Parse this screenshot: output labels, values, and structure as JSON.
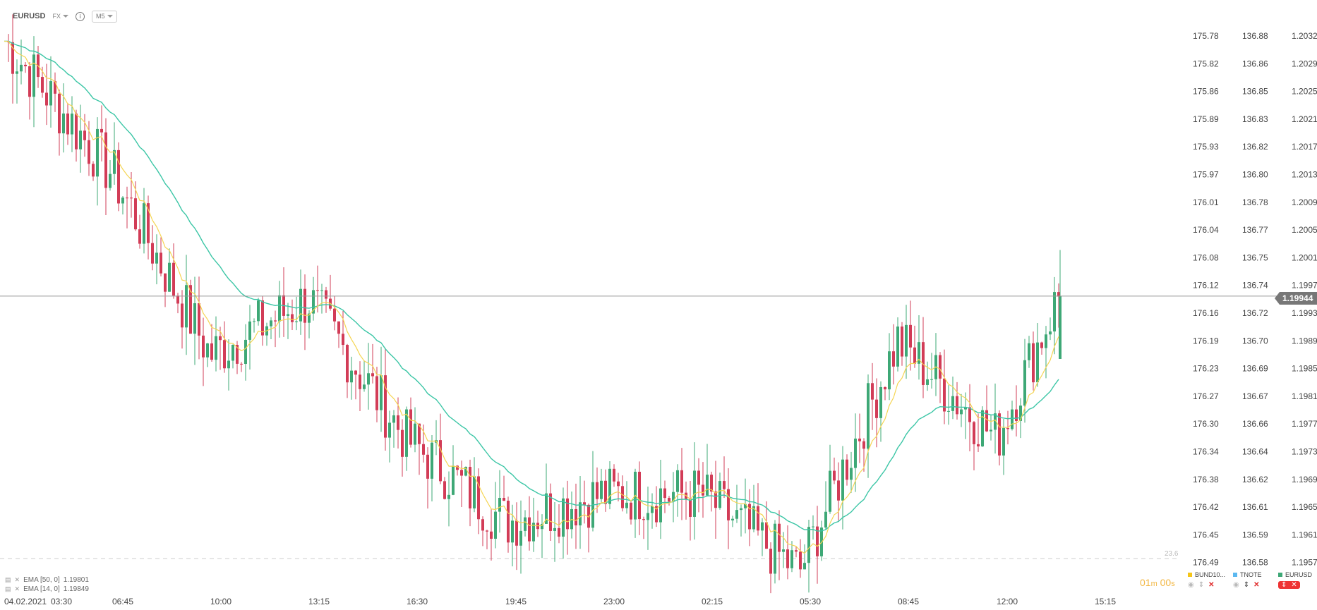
{
  "header": {
    "symbol": "EURUSD",
    "market": "FX",
    "info_glyph": "i",
    "timeframe": "M5"
  },
  "colors": {
    "bull": "#3ea876",
    "bear": "#d23c57",
    "ema50": "#3cc6a6",
    "ema14": "#f5d553",
    "price_line": "#999999",
    "price_label_bg": "#777777",
    "timer": "#f2b744"
  },
  "axes": {
    "col1": [
      "175.78",
      "175.82",
      "175.86",
      "175.89",
      "175.93",
      "175.97",
      "176.01",
      "176.04",
      "176.08",
      "176.12",
      "176.16",
      "176.19",
      "176.23",
      "176.27",
      "176.30",
      "176.34",
      "176.38",
      "176.42",
      "176.45",
      "176.49"
    ],
    "col2": [
      "136.88",
      "136.86",
      "136.85",
      "136.83",
      "136.82",
      "136.80",
      "136.78",
      "136.77",
      "136.75",
      "136.74",
      "136.72",
      "136.70",
      "136.69",
      "136.67",
      "136.66",
      "136.64",
      "136.62",
      "136.61",
      "136.59",
      "136.58"
    ],
    "col3": [
      "1.20329",
      "1.20290",
      "1.20250",
      "1.20211",
      "1.20171",
      "1.20132",
      "1.20092",
      "1.20053",
      "1.20013",
      "1.19974",
      "1.19935",
      "1.19895",
      "1.19856",
      "1.19816",
      "1.19777",
      "1.19737",
      "1.19698",
      "1.19658",
      "1.19619",
      "1.19579"
    ],
    "time_start": "04.02.2021",
    "time_labels": [
      "03:30",
      "06:45",
      "10:00",
      "13:15",
      "16:30",
      "19:45",
      "23:00",
      "02:15",
      "05:30",
      "08:45",
      "12:00",
      "15:15"
    ],
    "fib_label": "23.6"
  },
  "current_price": "1.19944",
  "indicators": [
    {
      "label": "EMA [50, 0]",
      "value": "1.19801"
    },
    {
      "label": "EMA [14, 0]",
      "value": "1.19849"
    }
  ],
  "timer": {
    "min": "01",
    "m": "m",
    "sec": "00",
    "s": "s"
  },
  "instruments": [
    {
      "name": "BUND10...",
      "color": "#f5c518"
    },
    {
      "name": "TNOTE",
      "color": "#5bb8f0"
    },
    {
      "name": "EURUSD",
      "color": "#3ea876"
    }
  ],
  "chart_data": {
    "type": "candlestick",
    "title": "EURUSD",
    "timeframe": "M5",
    "ylim": [
      1.1956,
      1.2035
    ],
    "series": [
      {
        "name": "EMA [50, 0]",
        "last": 1.19801
      },
      {
        "name": "EMA [14, 0]",
        "last": 1.19849
      }
    ],
    "anchors": [
      {
        "t": "03:30",
        "price": 1.2031
      },
      {
        "t": "06:45",
        "price": 1.2012
      },
      {
        "t": "10:00",
        "price": 1.1986
      },
      {
        "t": "13:15",
        "price": 1.1994
      },
      {
        "t": "16:30",
        "price": 1.1974
      },
      {
        "t": "19:45",
        "price": 1.1962
      },
      {
        "t": "23:00",
        "price": 1.1966
      },
      {
        "t": "02:15",
        "price": 1.1966
      },
      {
        "t": "05:30",
        "price": 1.1955
      },
      {
        "t": "08:45",
        "price": 1.1988
      },
      {
        "t": "12:00",
        "price": 1.1974
      },
      {
        "t": "now",
        "price": 1.19944
      }
    ],
    "last_price": 1.19944
  }
}
